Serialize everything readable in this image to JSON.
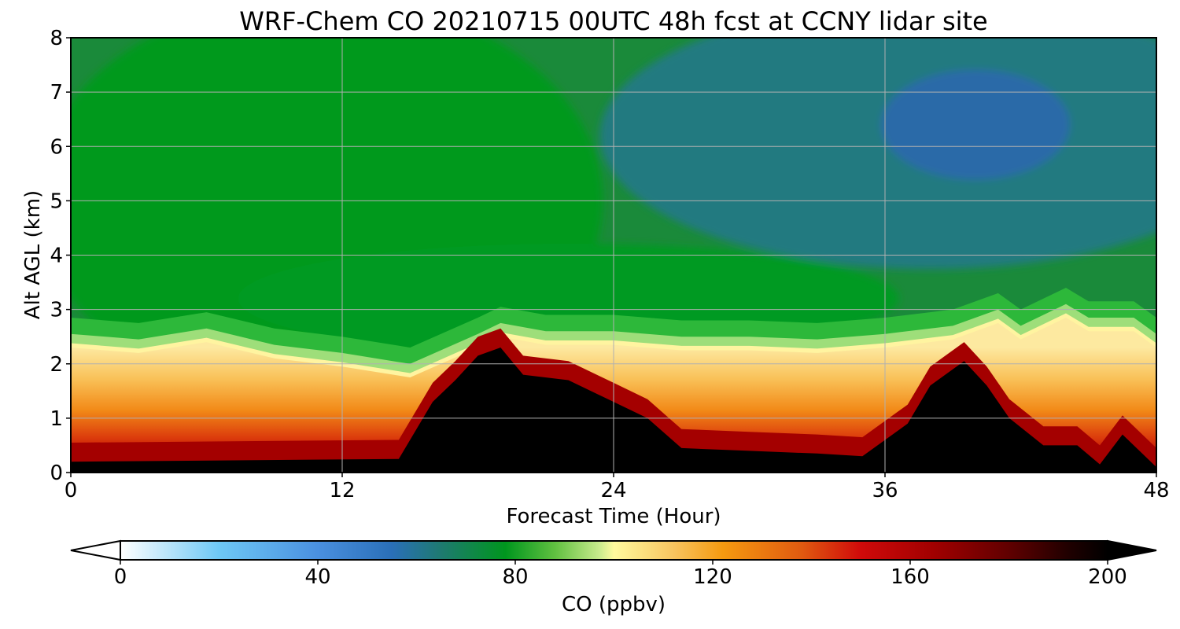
{
  "chart_data": {
    "type": "heatmap",
    "title": "WRF-Chem CO  20210715 00UTC 48h fcst at CCNY lidar site",
    "xlabel": "Forecast Time (Hour)",
    "ylabel": "Alt AGL (km)",
    "xlim": [
      0,
      48
    ],
    "ylim": [
      0,
      8
    ],
    "xticks": [
      "0",
      "12",
      "24",
      "36",
      "48"
    ],
    "yticks": [
      "0",
      "1",
      "2",
      "3",
      "4",
      "5",
      "6",
      "7",
      "8"
    ],
    "grid": true,
    "colorbar": {
      "label": "CO  (ppbv)",
      "range": [
        0,
        200
      ],
      "ticks": [
        "0",
        "40",
        "80",
        "120",
        "160",
        "200"
      ],
      "extend": "both",
      "orientation": "horizontal"
    },
    "boundary_layer_top_km": {
      "hours": [
        0,
        3,
        6,
        9,
        12,
        15,
        18,
        19,
        21,
        24,
        27,
        30,
        33,
        36,
        39,
        41,
        42,
        44,
        45,
        47,
        48
      ],
      "values": [
        2.3,
        2.2,
        2.4,
        2.1,
        1.95,
        1.75,
        2.3,
        2.5,
        2.35,
        2.35,
        2.25,
        2.25,
        2.2,
        2.3,
        2.45,
        2.75,
        2.45,
        2.85,
        2.6,
        2.6,
        2.3
      ]
    },
    "black_core_top_km": {
      "hours": [
        0,
        14.5,
        16,
        17,
        18,
        19,
        20,
        22,
        24,
        25.5,
        27,
        30,
        33,
        35,
        37,
        38,
        39.5,
        40.5,
        41.5,
        43,
        44.5,
        45.5,
        46.5,
        48
      ],
      "values": [
        0.2,
        0.25,
        1.3,
        1.7,
        2.15,
        2.3,
        1.8,
        1.7,
        1.3,
        1.0,
        0.45,
        0.4,
        0.35,
        0.3,
        0.9,
        1.6,
        2.05,
        1.6,
        1.0,
        0.5,
        0.5,
        0.15,
        0.7,
        0.1
      ]
    }
  }
}
